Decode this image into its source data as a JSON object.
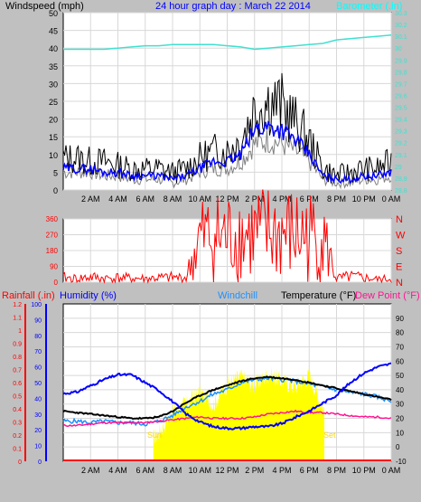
{
  "header": {
    "wind_label": "Windspeed (mph)",
    "date_label": "24 hour graph day : March 22 2014",
    "baro_label": "Barometer (.in)"
  },
  "x_tick_labels": [
    "2 AM",
    "4 AM",
    "6 AM",
    "8 AM",
    "10 AM",
    "12 PM",
    "2 PM",
    "4 PM",
    "6 PM",
    "8 PM",
    "10 PM",
    "0 AM"
  ],
  "colors": {
    "background": "#c0c0c0",
    "plot_area": "#ffffff",
    "grid": "#d8d8d8",
    "wind_gust": "#000000",
    "wind_avg": "#0000ff",
    "wind_grey": "#808080",
    "barometer": "#40e0d0",
    "direction": "#ff0000",
    "rain": "#ff0000",
    "humidity": "#0000ff",
    "windchill": "#1e90ff",
    "temperature": "#000000",
    "dewpoint": "#ff1493",
    "solar": "#ffff00",
    "sun_label": "#ffd700"
  },
  "chart_data": [
    {
      "type": "line",
      "title": "24 hour graph day : March 22 2014",
      "x": [
        0,
        1,
        2,
        3,
        4,
        5,
        6,
        7,
        8,
        9,
        10,
        11,
        12,
        13,
        14,
        15,
        16,
        17,
        18,
        19,
        20,
        21,
        22,
        23,
        24
      ],
      "ylabel": "Windspeed (mph)",
      "ylim": [
        0,
        50
      ],
      "yticks": [
        0,
        5,
        10,
        15,
        20,
        25,
        30,
        35,
        40,
        45,
        50
      ],
      "y2label": "Barometer (.in)",
      "y2lim": [
        28.8,
        30.3
      ],
      "y2ticks": [
        "28.8",
        "28.9",
        "29",
        "29.1",
        "29.2",
        "29.3",
        "29.4",
        "29.5",
        "29.6",
        "29.7",
        "29.8",
        "29.9",
        "30",
        "30.1",
        "30.2",
        "30.3"
      ],
      "series": [
        {
          "name": "gust",
          "values": [
            9,
            9,
            8,
            8,
            7,
            6,
            6,
            6,
            5,
            6,
            9,
            11,
            11,
            14,
            23,
            25,
            24,
            19,
            14,
            6,
            4,
            5,
            6,
            6,
            8
          ]
        },
        {
          "name": "average",
          "values": [
            6,
            6,
            6,
            5,
            5,
            4,
            4,
            4,
            3,
            4,
            6,
            8,
            8,
            10,
            17,
            18,
            17,
            14,
            10,
            4,
            3,
            3,
            4,
            4,
            5
          ]
        },
        {
          "name": "grey",
          "values": [
            5,
            5,
            5,
            4,
            4,
            3,
            3,
            3,
            2,
            3,
            5,
            6,
            6,
            8,
            13,
            14,
            13,
            11,
            8,
            3,
            2,
            2,
            3,
            3,
            4
          ]
        },
        {
          "name": "barometer",
          "values": [
            29.99,
            29.99,
            29.99,
            29.99,
            30.0,
            30.01,
            30.02,
            30.02,
            30.03,
            30.03,
            30.03,
            30.03,
            30.02,
            30.01,
            29.99,
            30.0,
            30.01,
            30.02,
            30.03,
            30.04,
            30.07,
            30.08,
            30.09,
            30.1,
            30.11
          ]
        }
      ]
    },
    {
      "type": "line",
      "x": [
        0,
        1,
        2,
        3,
        4,
        5,
        6,
        7,
        8,
        9,
        10,
        11,
        12,
        13,
        14,
        15,
        16,
        17,
        18,
        19,
        20,
        21,
        22,
        23,
        24
      ],
      "ylim": [
        0,
        360
      ],
      "yticks": [
        "0",
        "90",
        "180",
        "270",
        "360"
      ],
      "y2ticks": [
        "N",
        "E",
        "S",
        "W",
        "N"
      ],
      "series": [
        {
          "name": "direction",
          "values": [
            25,
            20,
            28,
            22,
            25,
            22,
            20,
            24,
            26,
            25,
            245,
            260,
            255,
            270,
            265,
            275,
            270,
            265,
            260,
            255,
            20,
            30,
            25,
            15,
            20
          ]
        }
      ]
    },
    {
      "type": "line",
      "x": [
        0,
        1,
        2,
        3,
        4,
        5,
        6,
        7,
        8,
        9,
        10,
        11,
        12,
        13,
        14,
        15,
        16,
        17,
        18,
        19,
        20,
        21,
        22,
        23,
        24
      ],
      "labels": {
        "rainfall": "Rainfall (.in)",
        "humidity": "Humidity (%)",
        "windchill": "Windchill",
        "temperature": "Temperature (°F)",
        "dewpoint": "Dew Point (°F)"
      },
      "rain_ticks": [
        "0",
        "0.1",
        "0.2",
        "0.3",
        "0.4",
        "0.5",
        "0.6",
        "0.7",
        "0.8",
        "0.9",
        "1",
        "1.1",
        "1.2"
      ],
      "humidity_ticks": [
        "0",
        "10",
        "20",
        "30",
        "40",
        "50",
        "60",
        "70",
        "80",
        "90",
        "100"
      ],
      "temp_ylim": [
        -10,
        100
      ],
      "temp_ticks": [
        "-10",
        "0",
        "10",
        "20",
        "30",
        "40",
        "50",
        "60",
        "70",
        "80",
        "90"
      ],
      "annotations": {
        "sunrise": "Sun",
        "sunset": "Set"
      },
      "series": [
        {
          "name": "rain",
          "values": [
            0,
            0,
            0,
            0,
            0,
            0,
            0,
            0,
            0,
            0,
            0,
            0,
            0,
            0,
            0,
            0,
            0,
            0,
            0,
            0,
            0,
            0,
            0,
            0,
            0
          ]
        },
        {
          "name": "humidity",
          "values": [
            43,
            44,
            48,
            52,
            55,
            55,
            50,
            45,
            38,
            30,
            25,
            22,
            21,
            21,
            22,
            22,
            24,
            28,
            32,
            37,
            42,
            50,
            56,
            60,
            62
          ]
        },
        {
          "name": "windchill",
          "values": [
            18,
            18,
            17,
            18,
            17,
            17,
            16,
            18,
            22,
            28,
            32,
            37,
            40,
            45,
            47,
            48,
            47,
            46,
            44,
            42,
            40,
            38,
            37,
            35,
            32
          ]
        },
        {
          "name": "temperature",
          "values": [
            25,
            24,
            23,
            22,
            21,
            20,
            20,
            21,
            25,
            31,
            36,
            40,
            43,
            46,
            48,
            49,
            48,
            47,
            45,
            43,
            41,
            39,
            37,
            35,
            33
          ]
        },
        {
          "name": "dewpoint",
          "values": [
            15,
            15,
            16,
            17,
            17,
            17,
            17,
            18,
            19,
            20,
            21,
            20,
            20,
            20,
            21,
            23,
            24,
            25,
            24,
            24,
            23,
            22,
            21,
            21,
            20
          ]
        },
        {
          "name": "solar",
          "values": [
            0,
            0,
            0,
            0,
            0,
            0,
            0,
            10,
            25,
            30,
            38,
            30,
            44,
            49,
            43,
            51,
            46,
            42,
            50,
            28,
            0,
            0,
            0,
            0,
            0
          ]
        }
      ]
    }
  ]
}
